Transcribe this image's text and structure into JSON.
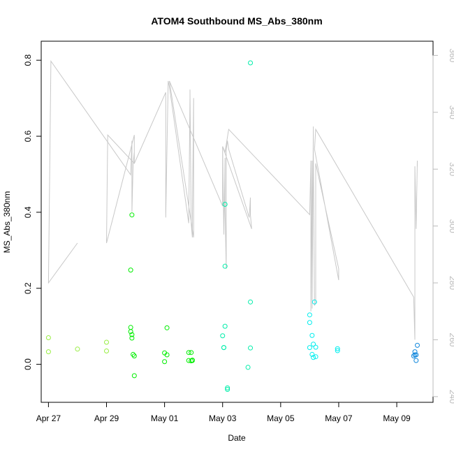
{
  "chart_data": {
    "type": "scatter",
    "title": "ATOM4 Southbound MS_Abs_380nm",
    "xlabel": "Date",
    "ylabel": "MS_Abs_380nm",
    "x_axis": {
      "type": "date",
      "range": [
        "2023-04-26T18:00",
        "2023-05-10T06:00"
      ],
      "ticks": [
        "2023-04-27",
        "2023-04-29",
        "2023-05-01",
        "2023-05-03",
        "2023-05-05",
        "2023-05-07",
        "2023-05-09"
      ],
      "tick_labels": [
        "Apr 27",
        "Apr 29",
        "May 01",
        "May 03",
        "May 05",
        "May 07",
        "May 09"
      ]
    },
    "y_axis": {
      "range": [
        -0.1,
        0.85
      ],
      "ticks": [
        0.0,
        0.2,
        0.4,
        0.6,
        0.8
      ],
      "tick_labels": [
        "0.0",
        "0.2",
        "0.4",
        "0.6",
        "0.8"
      ]
    },
    "y2_axis": {
      "range": [
        238,
        365
      ],
      "ticks": [
        240,
        260,
        280,
        300,
        320,
        340,
        360
      ],
      "tick_labels": [
        "240",
        "260",
        "280",
        "300",
        "320",
        "340",
        "360"
      ],
      "color": "#bbbbbb"
    },
    "grid": false,
    "legend": "none",
    "series": [
      {
        "kind": "points",
        "marker": "open-circle",
        "colors_by_time": [
          "#99ee44",
          "#00ee00",
          "#00eeaa",
          "#00eeee",
          "#1188dd"
        ],
        "x": [
          "2023-04-27T00:00",
          "2023-04-27T00:00",
          "2023-04-28T00:00",
          "2023-04-29T00:00",
          "2023-04-29T00:00",
          "2023-04-29T20:00",
          "2023-04-29T20:00",
          "2023-04-29T20:00",
          "2023-04-29T21:00",
          "2023-04-29T21:00",
          "2023-04-29T21:00",
          "2023-04-29T22:00",
          "2023-04-29T23:00",
          "2023-04-29T23:00",
          "2023-05-01T00:00",
          "2023-05-01T00:00",
          "2023-05-01T02:00",
          "2023-05-01T02:00",
          "2023-05-01T20:00",
          "2023-05-01T20:00",
          "2023-05-01T22:00",
          "2023-05-01T22:00",
          "2023-05-01T23:00",
          "2023-05-01T23:00",
          "2023-05-03T00:00",
          "2023-05-03T01:00",
          "2023-05-03T01:00",
          "2023-05-03T02:00",
          "2023-05-03T02:00",
          "2023-05-03T02:00",
          "2023-05-03T04:00",
          "2023-05-03T04:00",
          "2023-05-03T21:00",
          "2023-05-03T23:00",
          "2023-05-03T23:00",
          "2023-05-03T23:00",
          "2023-05-06T00:00",
          "2023-05-06T00:00",
          "2023-05-06T00:00",
          "2023-05-06T02:00",
          "2023-05-06T02:00",
          "2023-05-06T03:00",
          "2023-05-06T03:00",
          "2023-05-06T04:00",
          "2023-05-06T05:00",
          "2023-05-06T05:00",
          "2023-05-06T23:00",
          "2023-05-06T23:00",
          "2023-05-09T14:00",
          "2023-05-09T15:00",
          "2023-05-09T15:00",
          "2023-05-09T16:00",
          "2023-05-09T16:00",
          "2023-05-09T17:00"
        ],
        "y": [
          0.07,
          0.033,
          0.04,
          0.058,
          0.035,
          0.097,
          0.248,
          0.086,
          0.393,
          0.078,
          0.069,
          0.026,
          0.022,
          -0.03,
          0.03,
          0.007,
          0.096,
          0.025,
          0.031,
          0.01,
          0.009,
          0.031,
          0.01,
          0.011,
          0.075,
          0.044,
          0.044,
          0.421,
          0.258,
          0.1,
          -0.062,
          -0.066,
          -0.008,
          0.793,
          0.164,
          0.043,
          0.13,
          0.11,
          0.044,
          0.076,
          0.026,
          0.018,
          0.053,
          0.164,
          0.045,
          0.02,
          0.036,
          0.041,
          0.022,
          0.025,
          0.033,
          0.01,
          0.025,
          0.05
        ]
      },
      {
        "kind": "line",
        "axis": "y2",
        "color": "#c8c8c8",
        "x": [
          "2023-04-28T00:00",
          "2023-04-27T00:00",
          "2023-04-27T02:00",
          "2023-04-29T20:00",
          "2023-04-29T21:00",
          "2023-04-29T21:00",
          "2023-04-29T22:00",
          "2023-04-29T23:00",
          "2023-04-29T23:00",
          "2023-04-29T23:00",
          "2023-04-29T00:00",
          "2023-04-29T01:00",
          "2023-04-29T23:00",
          "2023-04-29T23:00",
          "2023-05-01T01:00",
          "2023-05-01T01:00",
          "2023-05-01T03:00",
          "2023-05-01T04:00",
          "2023-05-01T20:00",
          "2023-05-01T21:00",
          "2023-05-01T21:00",
          "2023-05-01T22:00",
          "2023-05-01T23:00",
          "2023-05-01T23:00",
          "2023-05-02T00:00",
          "2023-05-02T00:00",
          "2023-05-01T04:00",
          "2023-05-03T00:00",
          "2023-05-03T00:00",
          "2023-05-03T01:00",
          "2023-05-03T02:00",
          "2023-05-03T02:00",
          "2023-05-03T03:00",
          "2023-05-03T03:00",
          "2023-05-03T04:00",
          "2023-05-03T05:00",
          "2023-05-03T22:00",
          "2023-05-03T23:00",
          "2023-05-03T23:00",
          "2023-05-04T00:00",
          "2023-05-03T00:00",
          "2023-05-03T02:00",
          "2023-05-03T05:00",
          "2023-05-06T00:00",
          "2023-05-06T01:00",
          "2023-05-06T01:00",
          "2023-05-06T02:00",
          "2023-05-06T02:00",
          "2023-05-06T03:00",
          "2023-05-06T03:00",
          "2023-05-06T04:00",
          "2023-05-06T05:00",
          "2023-05-06T05:00",
          "2023-05-07T00:00",
          "2023-05-07T00:00",
          "2023-05-06T04:00",
          "2023-05-06T05:00",
          "2023-05-09T14:00",
          "2023-05-09T15:00",
          "2023-05-09T15:00",
          "2023-05-09T16:00",
          "2023-05-09T17:00",
          "2023-05-09T17:00"
        ],
        "y": [
          294,
          280,
          358,
          318,
          330,
          305,
          322,
          326,
          322,
          332,
          294,
          332,
          322,
          322,
          347,
          303,
          351,
          349,
          301,
          345,
          348,
          301,
          296,
          302,
          345,
          296,
          351,
          307,
          328,
          297,
          324,
          306,
          285,
          327,
          330,
          327,
          303,
          310,
          304,
          299,
          328,
          326,
          334,
          304,
          323,
          270,
          323,
          271,
          335,
          326,
          272,
          273,
          322,
          285,
          281,
          327,
          334,
          275,
          260,
          321,
          299,
          323,
          321
        ]
      }
    ]
  }
}
